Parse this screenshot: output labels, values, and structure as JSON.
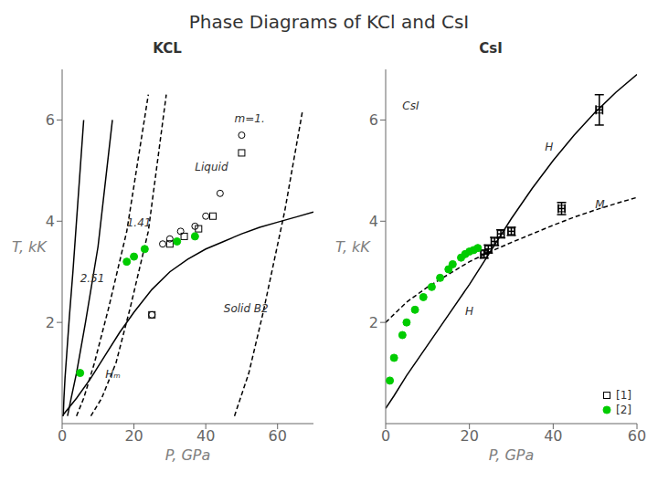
{
  "title": "Phase Diagrams of KCl and CsI",
  "chart_data": [
    {
      "type": "scatter",
      "title": "KCL",
      "xlabel": "P, GPa",
      "ylabel": "T, kK",
      "xlim": [
        0,
        70
      ],
      "ylim": [
        0,
        7
      ],
      "xticks": [
        0,
        20,
        40,
        60
      ],
      "yticks": [
        2,
        4,
        6
      ],
      "grid": false,
      "series": [
        {
          "type": "line",
          "color": "#000000",
          "line_style": "solid",
          "x": [
            0.3,
            0.5,
            0.8,
            1.2,
            2.0,
            3.0,
            4.5,
            6.0
          ],
          "values": [
            0.15,
            0.5,
            0.9,
            1.3,
            2.1,
            3.0,
            4.5,
            6.0
          ]
        },
        {
          "type": "line",
          "color": "#000000",
          "line_style": "solid",
          "x": [
            1.5,
            2.5,
            4.0,
            6.5,
            10.0,
            14.0
          ],
          "values": [
            0.15,
            0.5,
            1.0,
            2.0,
            3.5,
            6.0
          ]
        },
        {
          "type": "line",
          "color": "#000000",
          "line_style": "dashed",
          "x": [
            4.0,
            6.0,
            9.0,
            13.0,
            18.0,
            24.0
          ],
          "values": [
            0.15,
            0.5,
            1.2,
            2.3,
            3.8,
            6.5
          ]
        },
        {
          "type": "line",
          "color": "#000000",
          "line_style": "dashed",
          "x": [
            8.0,
            11.0,
            15.0,
            19.0,
            24.0,
            29.0
          ],
          "values": [
            0.15,
            0.5,
            1.2,
            2.3,
            3.8,
            6.5
          ]
        },
        {
          "type": "line",
          "color": "#000000",
          "line_style": "dashed",
          "x": [
            48,
            52,
            56,
            62,
            67
          ],
          "values": [
            0.15,
            1.0,
            2.2,
            4.2,
            6.2
          ]
        },
        {
          "type": "line",
          "color": "#000000",
          "line_style": "solid",
          "x": [
            0,
            4,
            8,
            12,
            16,
            20,
            25,
            30,
            35,
            40,
            45,
            50,
            55,
            60,
            65,
            70
          ],
          "values": [
            0.15,
            0.5,
            0.9,
            1.35,
            1.8,
            2.2,
            2.65,
            3.0,
            3.25,
            3.45,
            3.6,
            3.75,
            3.88,
            3.98,
            4.08,
            4.18
          ]
        },
        {
          "type": "scatter",
          "color": "#000000",
          "marker": "open_circle",
          "x": [
            25,
            28,
            30,
            33,
            37,
            40,
            44,
            50
          ],
          "values": [
            2.15,
            3.55,
            3.65,
            3.8,
            3.9,
            4.1,
            4.55,
            5.7
          ]
        },
        {
          "type": "scatter",
          "color": "#000000",
          "marker": "open_square",
          "x": [
            25,
            30,
            34,
            38,
            42,
            50
          ],
          "values": [
            2.15,
            3.55,
            3.7,
            3.85,
            4.1,
            5.35
          ]
        },
        {
          "type": "scatter",
          "color": "#00cc00",
          "marker": "circle",
          "x": [
            5,
            18,
            20,
            23,
            32,
            37
          ],
          "values": [
            1.0,
            3.2,
            3.3,
            3.45,
            3.6,
            3.7
          ]
        }
      ],
      "annotations": [
        {
          "text": "Hₘ",
          "x": 12,
          "y": 0.9
        },
        {
          "text": "1.41",
          "x": 18,
          "y": 3.9
        },
        {
          "text": "2.51",
          "x": 5,
          "y": 2.8
        },
        {
          "text": "m=1.",
          "x": 48,
          "y": 5.95
        },
        {
          "text": "Liquid",
          "x": 37,
          "y": 5.0
        },
        {
          "text": "Solid B2",
          "x": 45,
          "y": 2.2
        }
      ]
    },
    {
      "type": "scatter",
      "title": "CsI",
      "xlabel": "P, GPa",
      "ylabel": "T, kK",
      "xlim": [
        0,
        60
      ],
      "ylim": [
        0,
        7
      ],
      "xticks": [
        0,
        20,
        40,
        60
      ],
      "yticks": [
        2,
        4,
        6
      ],
      "grid": false,
      "legend": "lower right",
      "series": [
        {
          "type": "line",
          "color": "#000000",
          "line_style": "solid",
          "x": [
            0,
            2,
            5,
            10,
            15,
            20,
            25,
            30,
            35,
            40,
            45,
            50,
            55,
            60
          ],
          "values": [
            0.3,
            0.55,
            0.95,
            1.55,
            2.15,
            2.75,
            3.4,
            4.05,
            4.65,
            5.2,
            5.7,
            6.15,
            6.55,
            6.9
          ]
        },
        {
          "type": "line",
          "color": "#000000",
          "line_style": "dashed",
          "x": [
            0,
            5,
            10,
            15,
            20,
            25,
            30,
            35,
            40,
            45,
            50,
            55,
            60
          ],
          "values": [
            2.0,
            2.4,
            2.7,
            2.95,
            3.2,
            3.4,
            3.58,
            3.75,
            3.92,
            4.08,
            4.22,
            4.35,
            4.47
          ]
        },
        {
          "type": "scatter",
          "name": "[1]",
          "color": "#000000",
          "marker": "open_square",
          "x": [
            23.5,
            24.5,
            26.0,
            27.5,
            30.0,
            42.0,
            51.0
          ],
          "values": [
            3.35,
            3.45,
            3.6,
            3.75,
            3.8,
            4.25,
            6.2
          ],
          "xerr": [
            0.8,
            0.8,
            0.8,
            0.8,
            0.8,
            0.8,
            0.8
          ],
          "yerr": [
            0.08,
            0.08,
            0.08,
            0.08,
            0.08,
            0.12,
            0.3
          ]
        },
        {
          "type": "scatter",
          "name": "[2]",
          "color": "#00cc00",
          "marker": "circle",
          "x": [
            1,
            2,
            4,
            5,
            7,
            9,
            11,
            13,
            15,
            16,
            18,
            19,
            20,
            21,
            22
          ],
          "values": [
            0.85,
            1.3,
            1.75,
            2.0,
            2.25,
            2.5,
            2.7,
            2.88,
            3.05,
            3.15,
            3.28,
            3.35,
            3.4,
            3.43,
            3.47
          ]
        }
      ],
      "annotations": [
        {
          "text": "CsI",
          "x": 4,
          "y": 6.2
        },
        {
          "text": "H",
          "x": 38,
          "y": 5.4
        },
        {
          "text": "H",
          "x": 19,
          "y": 2.15
        },
        {
          "text": "M",
          "x": 50,
          "y": 4.25
        }
      ]
    }
  ]
}
